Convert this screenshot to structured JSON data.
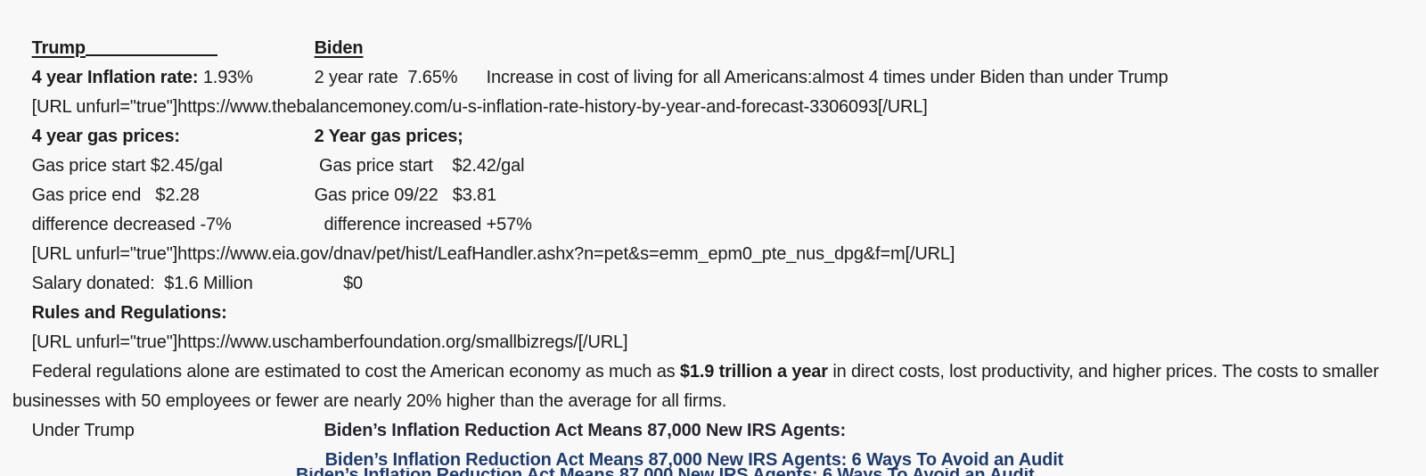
{
  "theme": {
    "background": "#f8f8f9",
    "text_color": "#1c1c1e",
    "link_color": "#1f3c6d"
  },
  "doc": {
    "header": {
      "trump_label": "Trump",
      "biden_label": "Biden"
    },
    "inflation": {
      "trump_label": "4 year Inflation rate:",
      "trump_value": " 1.93%",
      "biden_text": "2 year rate  7.65%",
      "note": "Increase in cost of living for all Americans:almost 4 times under Biden than under Trump"
    },
    "url_inflation": "[URL unfurl=\"true\"]https://www.thebalancemoney.com/u-s-inflation-rate-history-by-year-and-forecast-3306093[/URL]",
    "gas_headers": {
      "trump": "4 year gas prices:",
      "biden": "2 Year gas prices;"
    },
    "gas_start": {
      "trump": "Gas price start $2.45/gal",
      "biden": " Gas price start    $2.42/gal"
    },
    "gas_end": {
      "trump": "Gas price end   $2.28",
      "biden": "Gas price 09/22   $3.81"
    },
    "gas_diff": {
      "trump": "difference decreased -7%",
      "biden": "  difference increased +57%"
    },
    "url_gas": "[URL unfurl=\"true\"]https://www.eia.gov/dnav/pet/hist/LeafHandler.ashx?n=pet&s=emm_epm0_pte_nus_dpg&f=m[/URL]",
    "salary": {
      "trump": "Salary donated:  $1.6 Million",
      "biden": "      $0"
    },
    "rules_heading": "Rules and Regulations:",
    "url_rules": "[URL unfurl=\"true\"]https://www.uschamberfoundation.org/smallbizregs/[/URL]",
    "regulations": {
      "before": "Federal regulations alone are estimated to cost the American economy as much as ",
      "bold": "$1.9 trillion a year",
      "after": " in direct costs, lost productivity, and higher prices. The costs to smaller businesses with 50 employees or fewer are nearly 20% higher than the average for all firms."
    },
    "irs": {
      "trump": "Under Trump",
      "biden_heading": "  Biden’s Inflation Reduction Act Means 87,000 New IRS Agents:",
      "link": "Biden’s Inflation Reduction Act Means 87,000 New IRS Agents: 6 Ways To Avoid an Audit"
    }
  }
}
